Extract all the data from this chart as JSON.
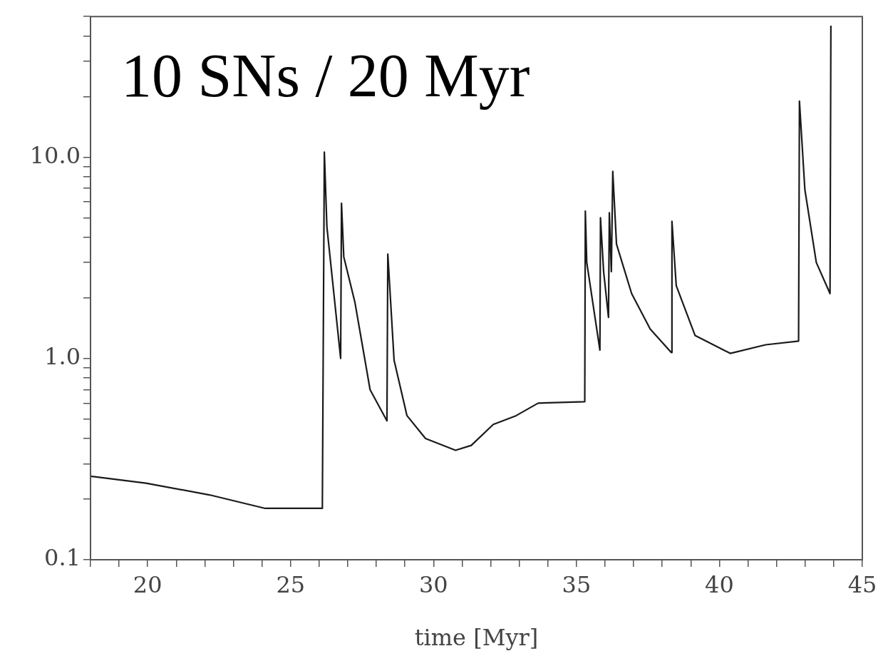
{
  "chart_data": {
    "type": "line",
    "xlabel": "time [Myr]",
    "annotations": [
      "10 SNs / 20 Myr"
    ],
    "log": "y",
    "grid": false,
    "legend": false,
    "marker": "none",
    "line_style": "solid",
    "xlim": [
      18,
      45
    ],
    "ylim": [
      0.1,
      50
    ],
    "xticks": [
      {
        "value": 18,
        "label": null
      },
      {
        "value": 19,
        "label": null
      },
      20,
      {
        "value": 21,
        "label": null
      },
      {
        "value": 22,
        "label": null
      },
      {
        "value": 23,
        "label": null
      },
      {
        "value": 24,
        "label": null
      },
      25,
      {
        "value": 26,
        "label": null
      },
      {
        "value": 27,
        "label": null
      },
      {
        "value": 28,
        "label": null
      },
      {
        "value": 29,
        "label": null
      },
      30,
      {
        "value": 31,
        "label": null
      },
      {
        "value": 32,
        "label": null
      },
      {
        "value": 33,
        "label": null
      },
      {
        "value": 34,
        "label": null
      },
      35,
      {
        "value": 36,
        "label": null
      },
      {
        "value": 37,
        "label": null
      },
      {
        "value": 38,
        "label": null
      },
      {
        "value": 39,
        "label": null
      },
      40,
      {
        "value": 41,
        "label": null
      },
      {
        "value": 42,
        "label": null
      },
      {
        "value": 43,
        "label": null
      },
      {
        "value": 44,
        "label": null
      },
      45
    ],
    "yticks": [
      {
        "value": 0.1,
        "label": "0.1"
      },
      {
        "value": 0.2,
        "label": null
      },
      {
        "value": 0.3,
        "label": null
      },
      {
        "value": 0.4,
        "label": null
      },
      {
        "value": 0.5,
        "label": null
      },
      {
        "value": 0.6,
        "label": null
      },
      {
        "value": 0.7,
        "label": null
      },
      {
        "value": 0.8,
        "label": null
      },
      {
        "value": 0.9,
        "label": null
      },
      {
        "value": 1,
        "label": "1.0"
      },
      {
        "value": 2,
        "label": null
      },
      {
        "value": 3,
        "label": null
      },
      {
        "value": 4,
        "label": null
      },
      {
        "value": 5,
        "label": null
      },
      {
        "value": 6,
        "label": null
      },
      {
        "value": 7,
        "label": null
      },
      {
        "value": 8,
        "label": null
      },
      {
        "value": 9,
        "label": null
      },
      {
        "value": 10,
        "label": "10.0"
      },
      {
        "value": 20,
        "label": null
      },
      {
        "value": 30,
        "label": null
      },
      {
        "value": 40,
        "label": null
      },
      {
        "value": 50,
        "label": null
      }
    ],
    "series": [
      {
        "color": "#1a1a1a",
        "x": [
          18,
          19.94,
          22.16,
          24.11,
          25.16,
          26.11,
          26.18,
          26.27,
          26.75,
          26.78,
          26.86,
          27.25,
          27.78,
          28.37,
          28.4,
          28.62,
          29.07,
          29.72,
          30.77,
          31.32,
          32.09,
          32.89,
          33.66,
          35.29,
          35.31,
          35.36,
          35.82,
          35.84,
          35.95,
          36.12,
          36.15,
          36.22,
          36.27,
          36.4,
          36.93,
          37.58,
          38.32,
          38.34,
          38.49,
          39.15,
          40.38,
          41.62,
          42.77,
          42.8,
          42.99,
          43.39,
          43.87,
          43.9
        ],
        "values": [
          0.26,
          0.24,
          0.21,
          0.18,
          0.18,
          0.18,
          10.6,
          4.5,
          1.0,
          5.9,
          3.2,
          1.9,
          0.7,
          0.49,
          3.3,
          0.98,
          0.52,
          0.4,
          0.35,
          0.37,
          0.47,
          0.52,
          0.6,
          0.61,
          5.4,
          3.0,
          1.1,
          5.0,
          2.7,
          1.6,
          5.3,
          2.7,
          8.5,
          3.7,
          2.1,
          1.4,
          1.07,
          4.8,
          2.3,
          1.3,
          1.06,
          1.17,
          1.22,
          19,
          6.9,
          3.0,
          2.1,
          45
        ]
      }
    ]
  }
}
